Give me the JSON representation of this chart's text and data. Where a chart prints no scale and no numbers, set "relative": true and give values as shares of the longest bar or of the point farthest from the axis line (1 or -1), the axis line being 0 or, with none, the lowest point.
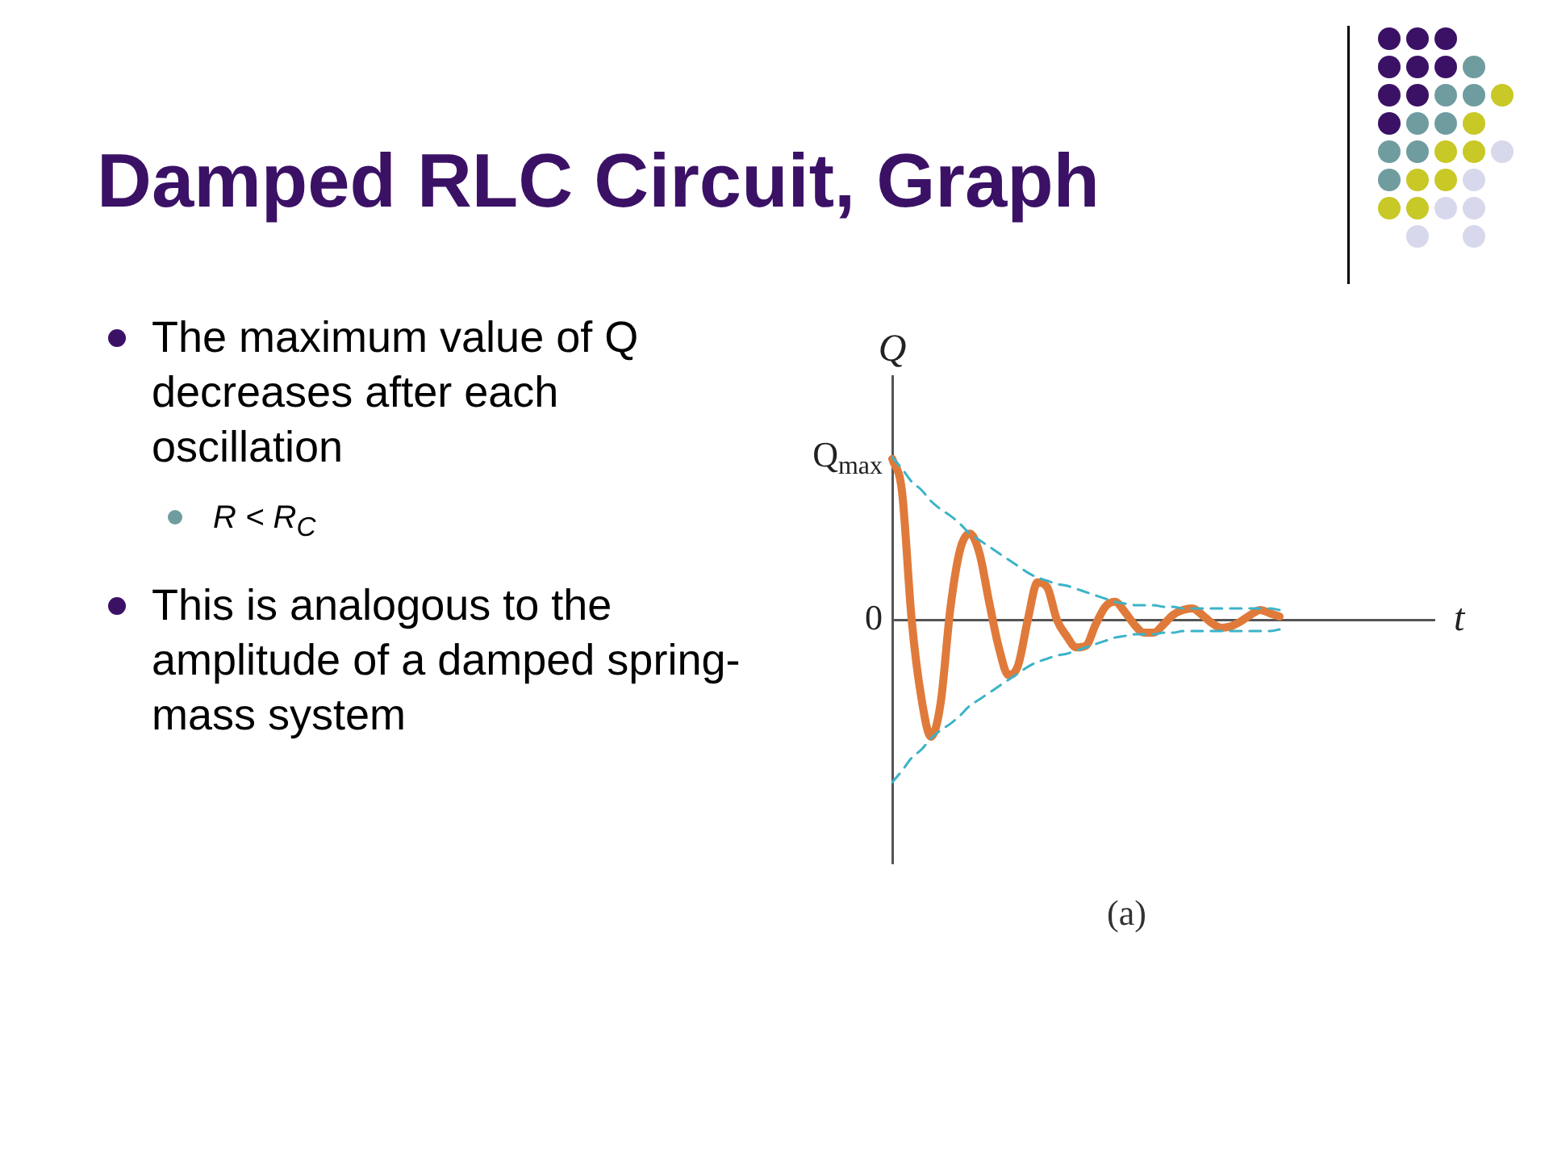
{
  "chart_data": {
    "type": "line",
    "title": "Damped RLC Circuit, Graph",
    "xlabel": "t",
    "ylabel": "Q",
    "annotations": [
      "The maximum value of Q decreases after each oscillation",
      "R < R$_{C}$",
      "This is analogous to the amplitude of a damped spring-mass system",
      "(a)",
      "0",
      "Q$_{max}$"
    ],
    "relative": true,
    "tick_labels": "y",
    "marker": "none",
    "categories": [
      null,
      null,
      null,
      null,
      null,
      null,
      null,
      null,
      null,
      null,
      null,
      null,
      null,
      null,
      null,
      null,
      null,
      null,
      null,
      null,
      null,
      null,
      null,
      null,
      null,
      null,
      null,
      null,
      null,
      null,
      null,
      null,
      null,
      null,
      null,
      null,
      null,
      null,
      null,
      null,
      null,
      null,
      null,
      null,
      null,
      null,
      null,
      null,
      null,
      null,
      null,
      null,
      null,
      null,
      null,
      null,
      null
    ],
    "series": [
      {
        "color": "#3bb3c8",
        "line_style": "dashed",
        "values": [
          1.0,
          0.93,
          0.85,
          0.8,
          0.73,
          0.68,
          0.64,
          0.59,
          0.53,
          0.49,
          0.45,
          0.41,
          0.37,
          0.33,
          0.29,
          0.26,
          0.24,
          0.22,
          0.21,
          0.19,
          0.17,
          0.15,
          0.13,
          0.11,
          0.1,
          0.09,
          0.09,
          0.09,
          0.08,
          0.08,
          0.07,
          0.07,
          0.07,
          0.07,
          0.07,
          0.07,
          0.07,
          0.07,
          0.07,
          0.07,
          0.06,
          null,
          null,
          null,
          null,
          null,
          null,
          null,
          null,
          null,
          null,
          null,
          null,
          null,
          null,
          null,
          null
        ]
      },
      {
        "color": "#3bb3c8",
        "line_style": "dashed",
        "values": [
          -1.0,
          -0.93,
          -0.85,
          -0.8,
          -0.73,
          -0.68,
          -0.64,
          -0.59,
          -0.53,
          -0.49,
          -0.45,
          -0.41,
          -0.37,
          -0.33,
          -0.29,
          -0.26,
          -0.24,
          -0.22,
          -0.21,
          -0.19,
          -0.17,
          -0.15,
          -0.13,
          -0.11,
          -0.1,
          -0.09,
          -0.09,
          -0.09,
          -0.08,
          -0.08,
          -0.07,
          -0.07,
          -0.07,
          -0.07,
          -0.07,
          -0.07,
          -0.07,
          -0.07,
          -0.07,
          -0.07,
          -0.06,
          null,
          null,
          null,
          null,
          null,
          null,
          null,
          null,
          null,
          null,
          null,
          null,
          null,
          null,
          null,
          null
        ]
      },
      {
        "color": "#e07a3a",
        "line_style": "solid",
        "values": [
          0.99,
          0.79,
          0,
          -0.48,
          -0.72,
          -0.51,
          0.07,
          0.43,
          0.53,
          0.41,
          0.11,
          -0.17,
          -0.34,
          -0.28,
          0,
          0.23,
          0.2,
          0,
          -0.1,
          -0.17,
          -0.16,
          -0.03,
          0.08,
          0.11,
          0.05,
          -0.03,
          -0.08,
          -0.08,
          -0.03,
          0.03,
          0.06,
          0.07,
          0.03,
          -0.02,
          -0.05,
          -0.04,
          -0.01,
          0.03,
          0.06,
          0.04,
          0.02,
          null,
          null,
          null,
          null,
          null,
          null,
          null,
          null,
          null,
          null,
          null,
          null,
          null,
          null,
          null,
          null
        ]
      }
    ]
  }
}
